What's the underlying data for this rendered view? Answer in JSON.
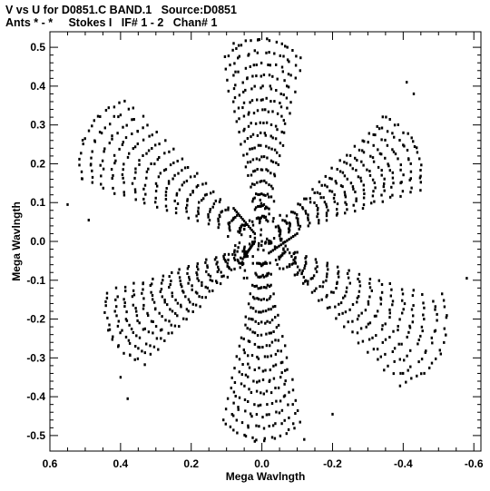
{
  "header": {
    "line1": "V vs U for D0851.C BAND.1   Source:D0851",
    "line2": "Ants * - *     Stokes I   IF# 1 - 2   Chan# 1"
  },
  "chart_data": {
    "type": "scatter",
    "title": "V vs U for D0851.C BAND.1   Source:D0851",
    "subtitle": "Ants * - *     Stokes I   IF# 1 - 2   Chan# 1",
    "xlabel": "Mega Wavlngth",
    "ylabel": "Mega Wavlngth",
    "xlim": [
      0.6,
      -0.62
    ],
    "ylim": [
      -0.54,
      0.54
    ],
    "x_ticks": [
      0.6,
      0.4,
      0.2,
      0.0,
      -0.2,
      -0.4,
      -0.6
    ],
    "x_tick_labels": [
      "0.6",
      "0.4",
      "0.2",
      "0.0",
      "-0.2",
      "-0.4",
      "-0.6"
    ],
    "y_ticks": [
      0.5,
      0.4,
      0.3,
      0.2,
      0.1,
      0.0,
      -0.1,
      -0.2,
      -0.3,
      -0.4,
      -0.5
    ],
    "y_tick_labels": [
      "0.5",
      "0.4",
      "0.3",
      "0.2",
      "0.1",
      "0.0",
      "-0.1",
      "-0.2",
      "-0.3",
      "-0.4",
      "-0.5"
    ],
    "grid": false,
    "marker_color": "#000000",
    "arms": [
      {
        "name": "",
        "angle_deg": 90,
        "max_radius": 0.52
      },
      {
        "name": "",
        "angle_deg": 30,
        "max_radius": 0.5
      },
      {
        "name": "",
        "angle_deg": -30,
        "max_radius": 0.58
      },
      {
        "name": "",
        "angle_deg": -90,
        "max_radius": 0.51
      },
      {
        "name": "",
        "angle_deg": 150,
        "max_radius": 0.57
      },
      {
        "name": "",
        "angle_deg": 210,
        "max_radius": 0.49
      }
    ],
    "sample_points": [
      {
        "u": 0.01,
        "v": 0.52
      },
      {
        "u": 0.08,
        "v": 0.51
      },
      {
        "u": -0.41,
        "v": 0.41
      },
      {
        "u": -0.43,
        "v": 0.38
      },
      {
        "u": 0.55,
        "v": 0.095
      },
      {
        "u": 0.49,
        "v": 0.055
      },
      {
        "u": -0.58,
        "v": -0.095
      },
      {
        "u": -0.51,
        "v": -0.135
      },
      {
        "u": 0.4,
        "v": -0.35
      },
      {
        "u": 0.38,
        "v": -0.405
      },
      {
        "u": 0.02,
        "v": -0.515
      },
      {
        "u": -0.12,
        "v": -0.51
      },
      {
        "u": -0.2,
        "v": -0.445
      },
      {
        "u": 0.0,
        "v": 0.0
      }
    ]
  }
}
